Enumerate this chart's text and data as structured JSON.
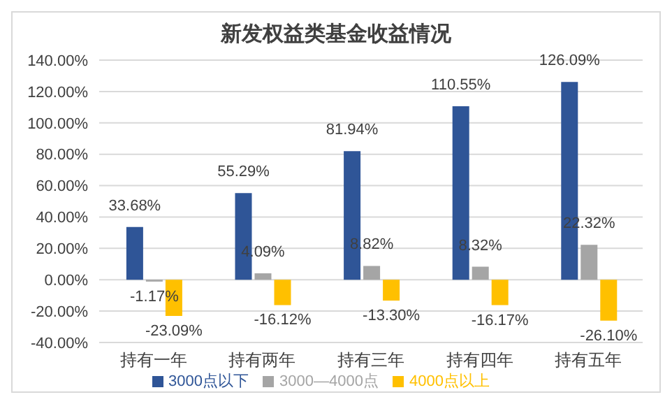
{
  "chart_data": {
    "type": "bar",
    "title": "新发权益类基金收益情况",
    "categories": [
      "持有一年",
      "持有两年",
      "持有三年",
      "持有四年",
      "持有五年"
    ],
    "series": [
      {
        "name": "3000点以下",
        "color": "#2f5597",
        "values": [
          33.68,
          55.29,
          81.94,
          110.55,
          126.09
        ],
        "value_labels": [
          "33.68%",
          "55.29%",
          "81.94%",
          "110.55%",
          "126.09%"
        ]
      },
      {
        "name": "3000—4000点",
        "color": "#a5a5a5",
        "values": [
          -1.17,
          4.09,
          8.82,
          8.32,
          22.32
        ],
        "value_labels": [
          "-1.17%",
          "4.09%",
          "8.82%",
          "8.32%",
          "22.32%"
        ]
      },
      {
        "name": "4000点以上",
        "color": "#ffc000",
        "values": [
          -23.09,
          -16.12,
          -13.3,
          -16.17,
          -26.1
        ],
        "value_labels": [
          "-23.09%",
          "-16.12%",
          "-13.30%",
          "-16.17%",
          "-26.10%"
        ]
      }
    ],
    "ylim": [
      -40,
      140
    ],
    "yticks": [
      {
        "value": -40,
        "label": "-40.00%"
      },
      {
        "value": -20,
        "label": "-20.00%"
      },
      {
        "value": 0,
        "label": "0.00%"
      },
      {
        "value": 20,
        "label": "20.00%"
      },
      {
        "value": 40,
        "label": "40.00%"
      },
      {
        "value": 60,
        "label": "60.00%"
      },
      {
        "value": 80,
        "label": "80.00%"
      },
      {
        "value": 100,
        "label": "100.00%"
      },
      {
        "value": 120,
        "label": "120.00%"
      },
      {
        "value": 140,
        "label": "140.00%"
      }
    ],
    "grid": "y",
    "legend": "bottom"
  }
}
